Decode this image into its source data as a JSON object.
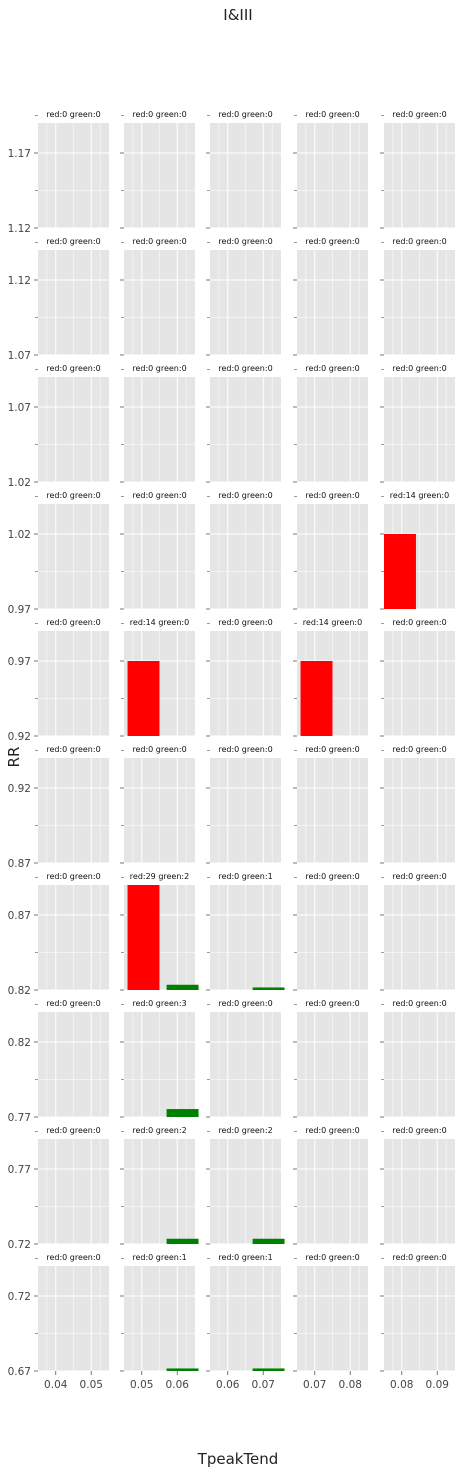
{
  "chart_data": {
    "type": "bar",
    "title": "I&III",
    "xlabel": "TpeakTend",
    "ylabel": "RR",
    "colors": {
      "red": "#ff0000",
      "green": "#008000",
      "panel_bg": "#e5e5e5",
      "grid": "#ffffff"
    },
    "grid": true,
    "columns": [
      {
        "xlim": [
          0.035,
          0.055
        ],
        "ticks": [
          "0.04",
          "0.05"
        ],
        "tick_values": [
          0.04,
          0.05
        ]
      },
      {
        "xlim": [
          0.045,
          0.065
        ],
        "ticks": [
          "0.05",
          "0.06"
        ],
        "tick_values": [
          0.05,
          0.06
        ]
      },
      {
        "xlim": [
          0.055,
          0.075
        ],
        "ticks": [
          "0.06",
          "0.07"
        ],
        "tick_values": [
          0.06,
          0.07
        ]
      },
      {
        "xlim": [
          0.065,
          0.085
        ],
        "ticks": [
          "0.07",
          "0.08"
        ],
        "tick_values": [
          0.07,
          0.08
        ]
      },
      {
        "xlim": [
          0.075,
          0.095
        ],
        "ticks": [
          "0.08",
          "0.09"
        ],
        "tick_values": [
          0.08,
          0.09
        ]
      }
    ],
    "rows": [
      {
        "ylim": [
          1.12,
          1.19
        ],
        "ticks": [
          "1.12",
          "1.17"
        ],
        "tick_values": [
          1.12,
          1.17
        ]
      },
      {
        "ylim": [
          1.07,
          1.14
        ],
        "ticks": [
          "1.07",
          "1.12"
        ],
        "tick_values": [
          1.07,
          1.12
        ]
      },
      {
        "ylim": [
          1.02,
          1.09
        ],
        "ticks": [
          "1.02",
          "1.07"
        ],
        "tick_values": [
          1.02,
          1.07
        ]
      },
      {
        "ylim": [
          0.97,
          1.04
        ],
        "ticks": [
          "0.97",
          "1.02"
        ],
        "tick_values": [
          0.97,
          1.02
        ]
      },
      {
        "ylim": [
          0.92,
          0.99
        ],
        "ticks": [
          "0.92",
          "0.97"
        ],
        "tick_values": [
          0.92,
          0.97
        ]
      },
      {
        "ylim": [
          0.87,
          0.94
        ],
        "ticks": [
          "0.87",
          "0.92"
        ],
        "tick_values": [
          0.87,
          0.92
        ]
      },
      {
        "ylim": [
          0.82,
          0.89
        ],
        "ticks": [
          "0.82",
          "0.87"
        ],
        "tick_values": [
          0.82,
          0.87
        ]
      },
      {
        "ylim": [
          0.77,
          0.84
        ],
        "ticks": [
          "0.77",
          "0.82"
        ],
        "tick_values": [
          0.77,
          0.82
        ]
      },
      {
        "ylim": [
          0.72,
          0.79
        ],
        "ticks": [
          "0.72",
          "0.77"
        ],
        "tick_values": [
          0.72,
          0.77
        ]
      },
      {
        "ylim": [
          0.67,
          0.74
        ],
        "ticks": [
          "0.67",
          "0.72"
        ],
        "tick_values": [
          0.67,
          0.72
        ]
      }
    ],
    "panels": [
      [
        {
          "title": "red:0 green:0",
          "bars": []
        },
        {
          "title": "red:0 green:0",
          "bars": []
        },
        {
          "title": "red:0 green:0",
          "bars": []
        },
        {
          "title": "red:0 green:0",
          "bars": []
        },
        {
          "title": "red:0 green:0",
          "bars": []
        }
      ],
      [
        {
          "title": "red:0 green:0",
          "bars": []
        },
        {
          "title": "red:0 green:0",
          "bars": []
        },
        {
          "title": "red:0 green:0",
          "bars": []
        },
        {
          "title": "red:0 green:0",
          "bars": []
        },
        {
          "title": "red:0 green:0",
          "bars": []
        }
      ],
      [
        {
          "title": "red:0 green:0",
          "bars": []
        },
        {
          "title": "red:0 green:0",
          "bars": []
        },
        {
          "title": "red:0 green:0",
          "bars": []
        },
        {
          "title": "red:0 green:0",
          "bars": []
        },
        {
          "title": "red:0 green:0",
          "bars": []
        }
      ],
      [
        {
          "title": "red:0 green:0",
          "bars": []
        },
        {
          "title": "red:0 green:0",
          "bars": []
        },
        {
          "title": "red:0 green:0",
          "bars": []
        },
        {
          "title": "red:0 green:0",
          "bars": []
        },
        {
          "title": "red:14 green:0",
          "bars": [
            {
              "series": "red",
              "x0": 0.075,
              "x1": 0.084,
              "y": 1.02
            }
          ]
        }
      ],
      [
        {
          "title": "red:0 green:0",
          "bars": []
        },
        {
          "title": "red:14 green:0",
          "bars": [
            {
              "series": "red",
              "x0": 0.046,
              "x1": 0.055,
              "y": 0.97
            }
          ]
        },
        {
          "title": "red:0 green:0",
          "bars": []
        },
        {
          "title": "red:14 green:0",
          "bars": [
            {
              "series": "red",
              "x0": 0.066,
              "x1": 0.075,
              "y": 0.97
            }
          ]
        },
        {
          "title": "red:0 green:0",
          "bars": []
        }
      ],
      [
        {
          "title": "red:0 green:0",
          "bars": []
        },
        {
          "title": "red:0 green:0",
          "bars": []
        },
        {
          "title": "red:0 green:0",
          "bars": []
        },
        {
          "title": "red:0 green:0",
          "bars": []
        },
        {
          "title": "red:0 green:0",
          "bars": []
        }
      ],
      [
        {
          "title": "red:0 green:0",
          "bars": []
        },
        {
          "title": "red:29 green:2",
          "bars": [
            {
              "series": "red",
              "x0": 0.046,
              "x1": 0.055,
              "y": 0.89
            },
            {
              "series": "green",
              "x0": 0.057,
              "x1": 0.066,
              "y": 0.8235
            }
          ]
        },
        {
          "title": "red:0 green:1",
          "bars": [
            {
              "series": "green",
              "x0": 0.067,
              "x1": 0.076,
              "y": 0.8217
            }
          ]
        },
        {
          "title": "red:0 green:0",
          "bars": []
        },
        {
          "title": "red:0 green:0",
          "bars": []
        }
      ],
      [
        {
          "title": "red:0 green:0",
          "bars": []
        },
        {
          "title": "red:0 green:3",
          "bars": [
            {
              "series": "green",
              "x0": 0.057,
              "x1": 0.066,
              "y": 0.7753
            }
          ]
        },
        {
          "title": "red:0 green:0",
          "bars": []
        },
        {
          "title": "red:0 green:0",
          "bars": []
        },
        {
          "title": "red:0 green:0",
          "bars": []
        }
      ],
      [
        {
          "title": "red:0 green:0",
          "bars": []
        },
        {
          "title": "red:0 green:2",
          "bars": [
            {
              "series": "green",
              "x0": 0.057,
              "x1": 0.066,
              "y": 0.7235
            }
          ]
        },
        {
          "title": "red:0 green:2",
          "bars": [
            {
              "series": "green",
              "x0": 0.067,
              "x1": 0.076,
              "y": 0.7235
            }
          ]
        },
        {
          "title": "red:0 green:0",
          "bars": []
        },
        {
          "title": "red:0 green:0",
          "bars": []
        }
      ],
      [
        {
          "title": "red:0 green:0",
          "bars": []
        },
        {
          "title": "red:0 green:1",
          "bars": [
            {
              "series": "green",
              "x0": 0.057,
              "x1": 0.066,
              "y": 0.6717
            }
          ]
        },
        {
          "title": "red:0 green:1",
          "bars": [
            {
              "series": "green",
              "x0": 0.067,
              "x1": 0.076,
              "y": 0.6717
            }
          ]
        },
        {
          "title": "red:0 green:0",
          "bars": []
        },
        {
          "title": "red:0 green:0",
          "bars": []
        }
      ]
    ]
  }
}
